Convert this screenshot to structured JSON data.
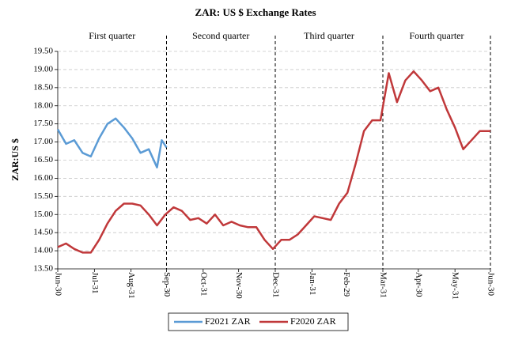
{
  "chart_data": {
    "type": "line",
    "title": "ZAR: US $ Exchange Rates",
    "y_label": "ZAR:US $",
    "annotations": [
      "First quarter",
      "Second quarter",
      "Third quarter",
      "Fourth quarter"
    ],
    "xlim": [
      0,
      366
    ],
    "xticks": [
      {
        "value": 0,
        "label": "Jun-30"
      },
      {
        "value": 31,
        "label": "Jul-31"
      },
      {
        "value": 62,
        "label": "Aug-31"
      },
      {
        "value": 92,
        "label": "Sep-30"
      },
      {
        "value": 123,
        "label": "Oct-31"
      },
      {
        "value": 153,
        "label": "Nov-30"
      },
      {
        "value": 184,
        "label": "Dec-31"
      },
      {
        "value": 215,
        "label": "Jan-31"
      },
      {
        "value": 244,
        "label": "Feb-29"
      },
      {
        "value": 275,
        "label": "Mar-31"
      },
      {
        "value": 305,
        "label": "Apr-30"
      },
      {
        "value": 336,
        "label": "May-31"
      },
      {
        "value": 366,
        "label": "Jun-30"
      }
    ],
    "ylim": [
      13.5,
      19.5
    ],
    "yticks": [
      {
        "value": 13.5,
        "label": "13.50"
      },
      {
        "value": 14,
        "label": "14.00"
      },
      {
        "value": 14.5,
        "label": "14.50"
      },
      {
        "value": 15,
        "label": "15.00"
      },
      {
        "value": 15.5,
        "label": "15.50"
      },
      {
        "value": 16,
        "label": "16.00"
      },
      {
        "value": 16.5,
        "label": "16.50"
      },
      {
        "value": 17,
        "label": "17.00"
      },
      {
        "value": 17.5,
        "label": "17.50"
      },
      {
        "value": 18,
        "label": "18.00"
      },
      {
        "value": 18.5,
        "label": "18.50"
      },
      {
        "value": 19,
        "label": "19.00"
      },
      {
        "value": 19.5,
        "label": "19.50"
      }
    ],
    "grid": true,
    "legend": "bottom",
    "series": [
      {
        "name": "F2021 ZAR",
        "color": "#5b9bd5",
        "x": [
          0,
          7,
          14,
          21,
          28,
          35,
          42,
          49,
          56,
          63,
          70,
          77,
          84,
          88,
          92
        ],
        "values": [
          17.35,
          16.95,
          17.05,
          16.7,
          16.6,
          17.1,
          17.5,
          17.65,
          17.4,
          17.1,
          16.7,
          16.8,
          16.3,
          17.05,
          16.85
        ]
      },
      {
        "name": "F2020 ZAR",
        "color": "#c0383a",
        "x": [
          0,
          7,
          14,
          21,
          28,
          35,
          42,
          49,
          56,
          63,
          70,
          77,
          84,
          91,
          98,
          105,
          112,
          119,
          126,
          133,
          140,
          147,
          154,
          161,
          168,
          175,
          182,
          189,
          196,
          203,
          210,
          217,
          224,
          231,
          238,
          245,
          252,
          259,
          266,
          273,
          280,
          287,
          294,
          301,
          308,
          315,
          322,
          329,
          336,
          343,
          350,
          357,
          366
        ],
        "values": [
          14.1,
          14.2,
          14.05,
          13.95,
          13.95,
          14.3,
          14.75,
          15.1,
          15.3,
          15.3,
          15.25,
          15.0,
          14.7,
          15.0,
          15.2,
          15.1,
          14.85,
          14.9,
          14.75,
          15.0,
          14.7,
          14.8,
          14.7,
          14.65,
          14.65,
          14.3,
          14.05,
          14.3,
          14.3,
          14.45,
          14.7,
          14.95,
          14.9,
          14.85,
          15.3,
          15.6,
          16.4,
          17.3,
          17.6,
          17.6,
          18.9,
          18.1,
          18.7,
          18.95,
          18.7,
          18.4,
          18.5,
          17.9,
          17.4,
          16.8,
          17.05,
          17.3,
          17.3
        ]
      }
    ]
  }
}
